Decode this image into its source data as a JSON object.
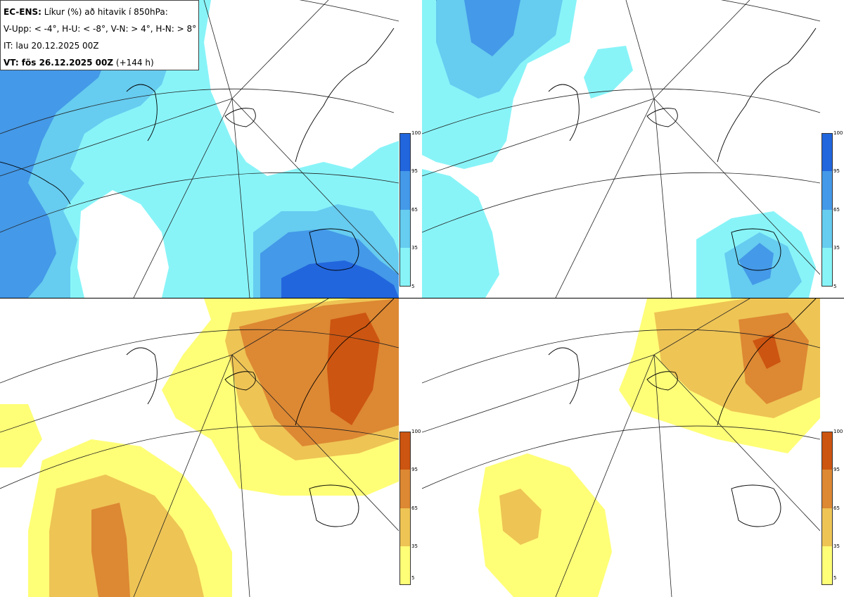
{
  "legend": {
    "title_bold": "EC-ENS:",
    "title_rest": " Líkur (%) að hitavik í 850hPa:",
    "thresholds": "V-Upp: < -4°, H-U: < -8°, V-N: > 4°, H-N: > 8°",
    "init_time": "IT: lau 20.12.2025 00Z",
    "valid_bold": "VT: fös 26.12.2025 00Z",
    "valid_rest": " (+144 h)"
  },
  "panels": [
    {
      "id": "V-Upp",
      "description_role": "cold anomaly probability",
      "palette": "cold"
    },
    {
      "id": "H-U",
      "description_role": "strong cold anomaly probability",
      "palette": "cold"
    },
    {
      "id": "V-N",
      "description_role": "warm anomaly probability",
      "palette": "warm"
    },
    {
      "id": "H-N",
      "description_role": "strong warm anomaly probability",
      "palette": "warm"
    }
  ],
  "colorbar": {
    "ticks": [
      "100",
      "95",
      "65",
      "35",
      "5"
    ],
    "cold_colors": [
      "#2266dd",
      "#4499e8",
      "#66ccf0",
      "#88f4f8"
    ],
    "warm_colors": [
      "#cc5511",
      "#dd8833",
      "#eec455",
      "#ffff77"
    ]
  }
}
